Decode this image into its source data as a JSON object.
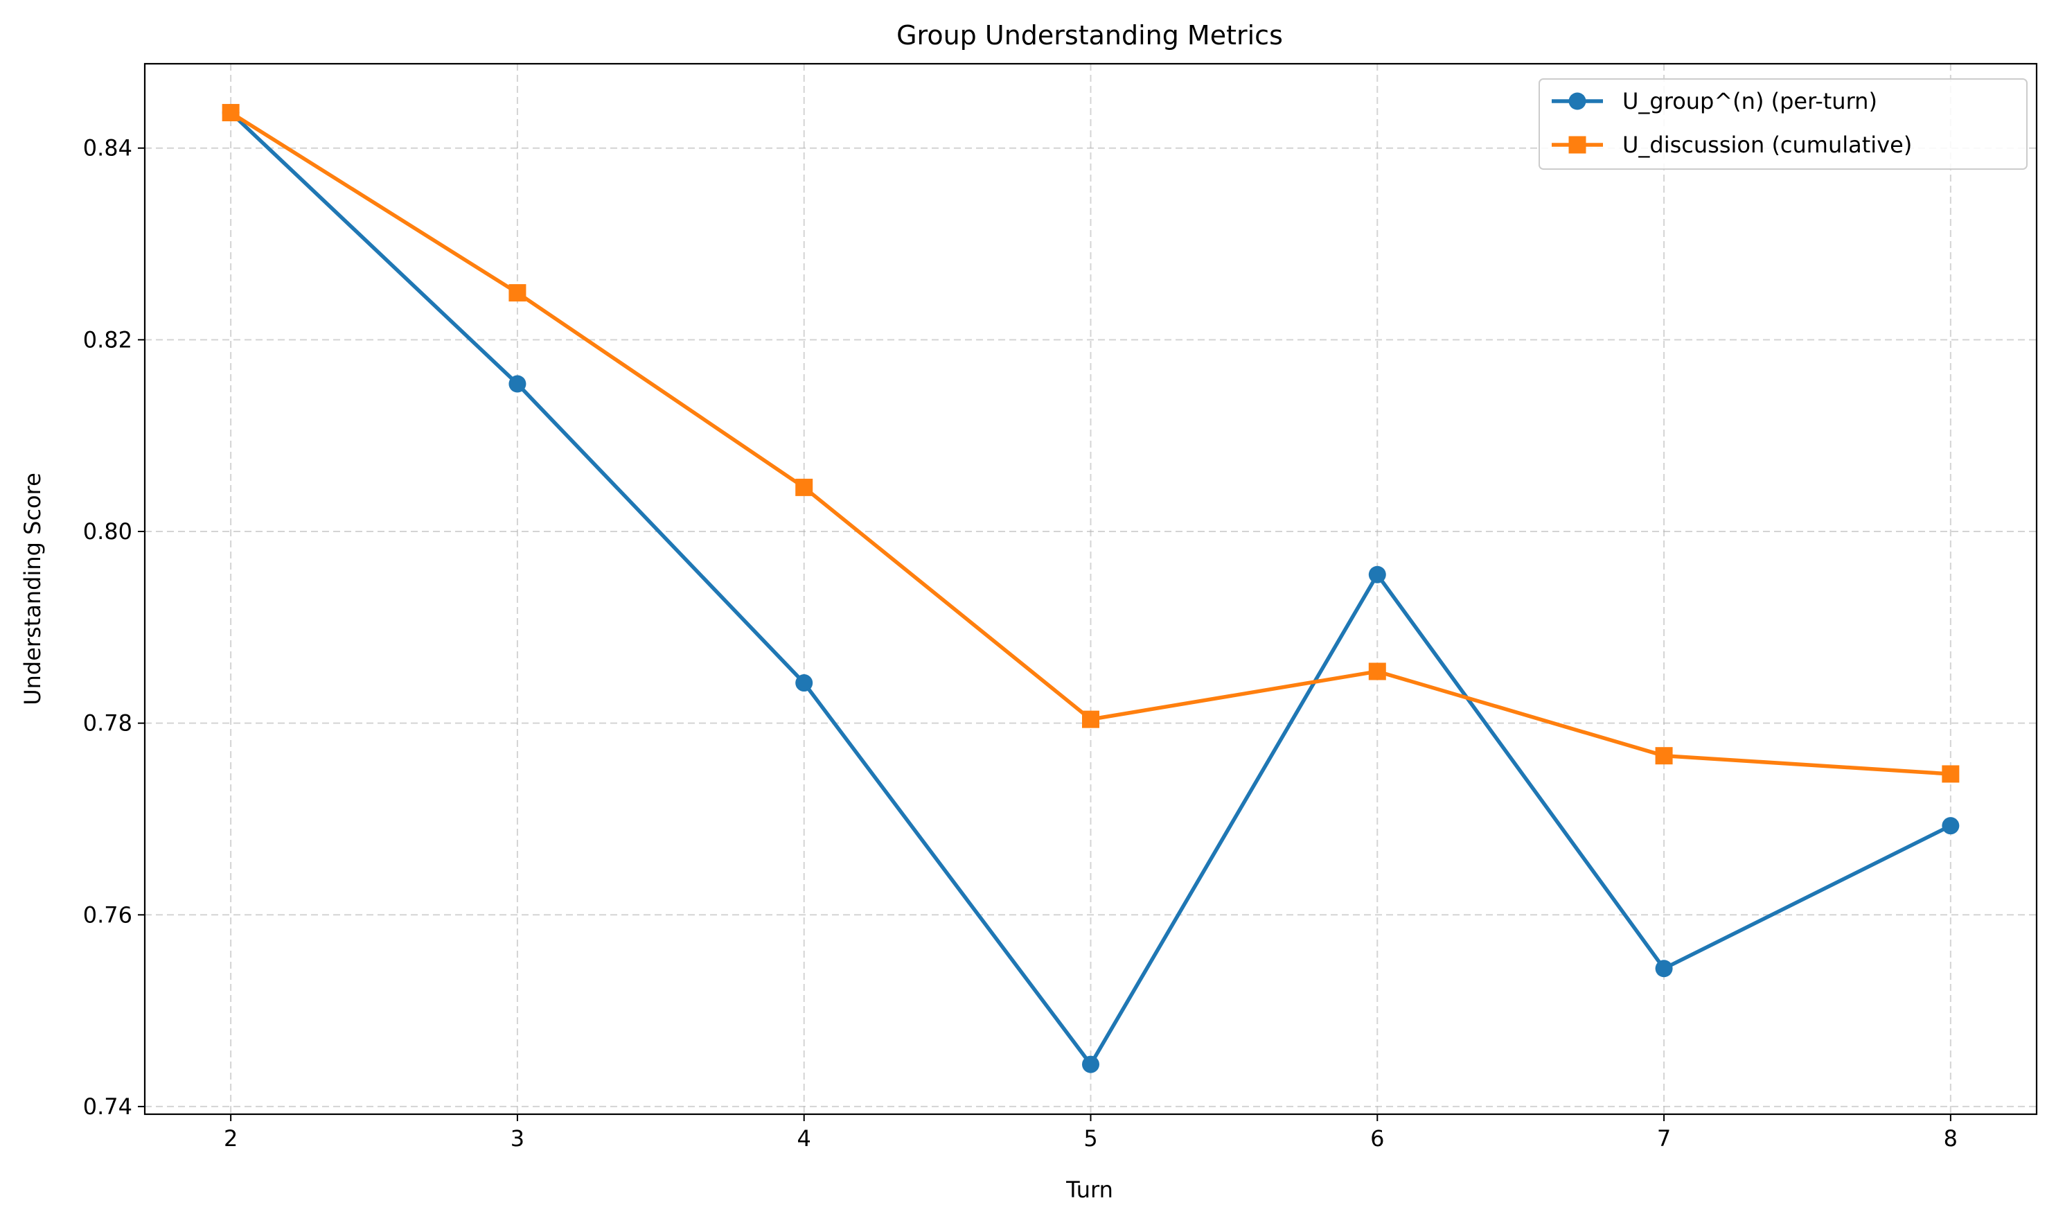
{
  "chart_data": {
    "type": "line",
    "title": "Group Understanding Metrics",
    "xlabel": "Turn",
    "ylabel": "Understanding Score",
    "x": [
      2,
      3,
      4,
      5,
      6,
      7,
      8
    ],
    "xlim": [
      1.7,
      8.3
    ],
    "ylim": [
      0.7392,
      0.8488
    ],
    "x_ticks": [
      2,
      3,
      4,
      5,
      6,
      7,
      8
    ],
    "y_ticks": [
      0.74,
      0.76,
      0.78,
      0.8,
      0.82,
      0.84
    ],
    "y_tick_labels": [
      "0.74",
      "0.76",
      "0.78",
      "0.80",
      "0.82",
      "0.84"
    ],
    "grid": true,
    "legend_position": "top-right",
    "series": [
      {
        "name": "U_group^(n) (per-turn)",
        "color": "#1f77b4",
        "marker": "circle",
        "values": [
          0.8437,
          0.8154,
          0.7842,
          0.7444,
          0.7955,
          0.7544,
          0.7693
        ]
      },
      {
        "name": "U_discussion (cumulative)",
        "color": "#ff7f0e",
        "marker": "square",
        "values": [
          0.8437,
          0.8249,
          0.8046,
          0.7804,
          0.7854,
          0.7766,
          0.7747
        ]
      }
    ]
  }
}
